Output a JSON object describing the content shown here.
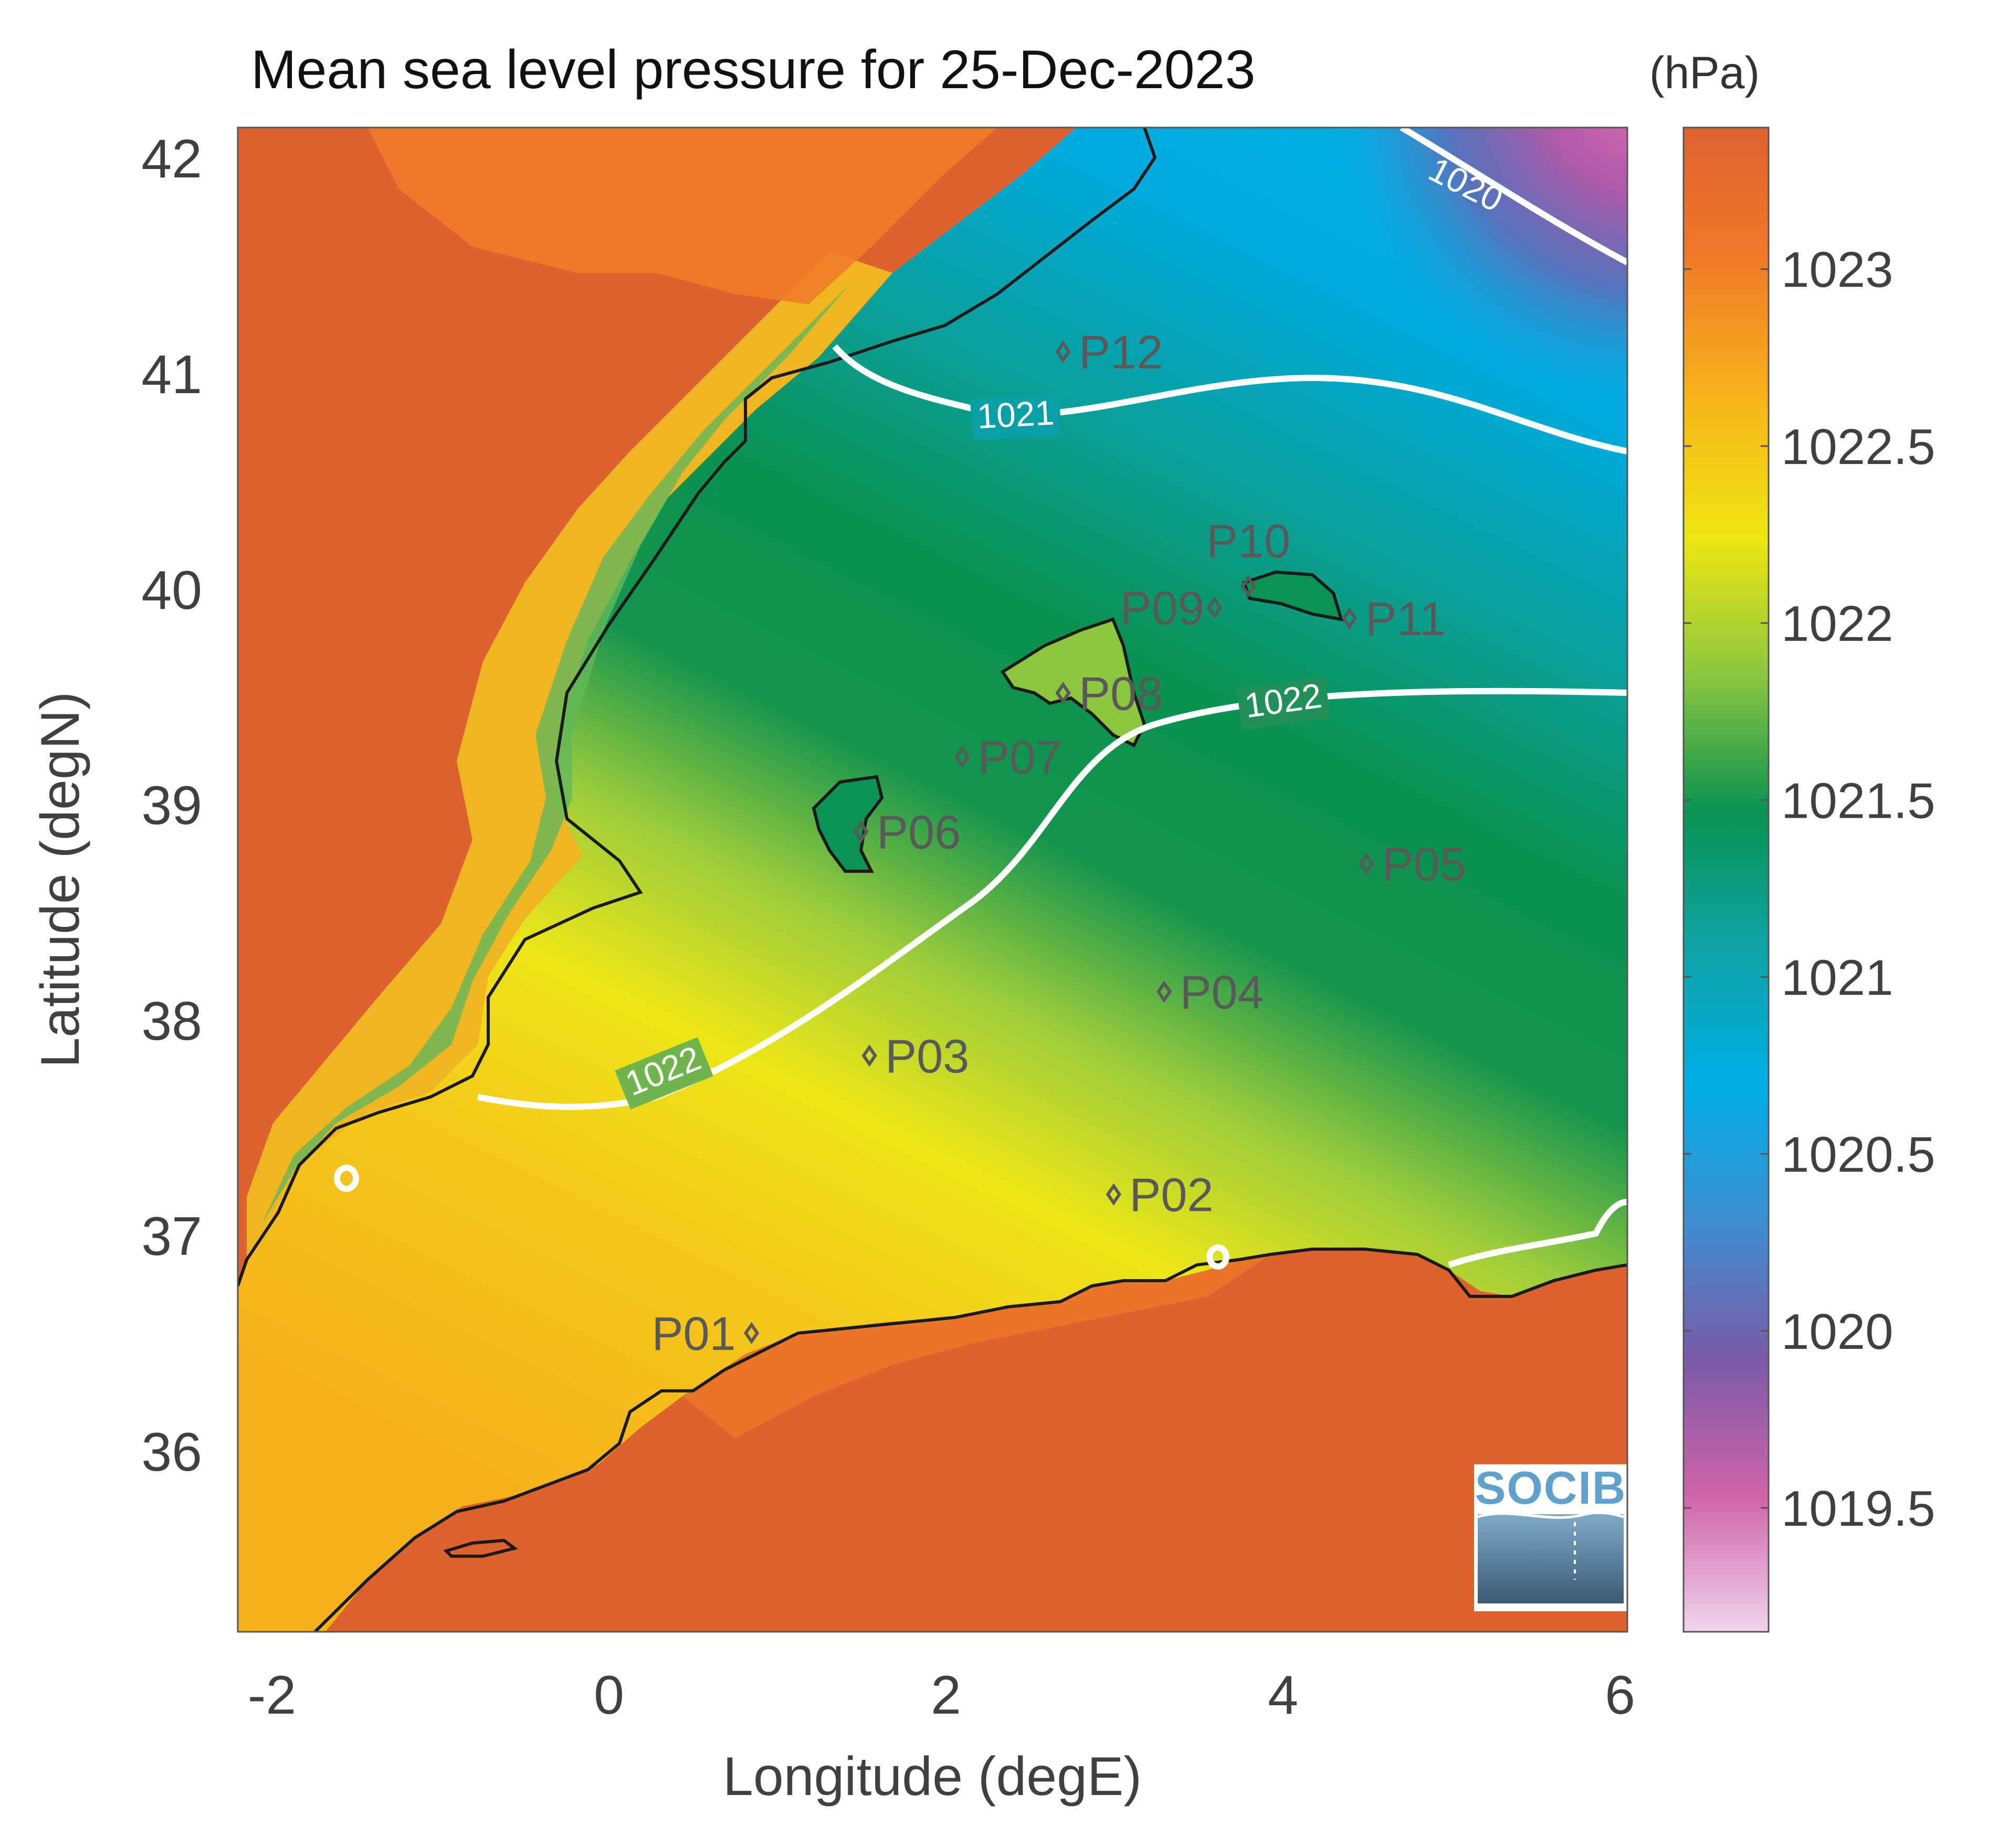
{
  "figure": {
    "title": "Mean sea level pressure for 25-Dec-2023",
    "x_axis_label": "Longitude (degE)",
    "y_axis_label": "Latitude (degN)",
    "x_ticks": [
      "-2",
      "0",
      "2",
      "4",
      "6"
    ],
    "y_ticks": [
      "36",
      "37",
      "38",
      "39",
      "40",
      "41",
      "42"
    ],
    "logo_text": "SOCIB"
  },
  "colorbar": {
    "unit": "(hPa)",
    "ticks": [
      "1019.5",
      "1020",
      "1020.5",
      "1021",
      "1021.5",
      "1022",
      "1022.5",
      "1023"
    ],
    "range": [
      1019.15,
      1023.4
    ],
    "colors": [
      "#f0d4ec",
      "#d063a8",
      "#7a5aa8",
      "#3e8ed0",
      "#00aee6",
      "#0fa3a6",
      "#0a9352",
      "#8cc63f",
      "#eee613",
      "#f7b51a",
      "#f07c28",
      "#dd6230"
    ]
  },
  "chart_data": {
    "type": "heatmap",
    "title": "Mean sea level pressure for 25-Dec-2023",
    "xlabel": "Longitude (degE)",
    "ylabel": "Latitude (degN)",
    "xlim": [
      -2.2,
      6.05
    ],
    "ylim": [
      35.1,
      42.15
    ],
    "colorbar_label": "(hPa)",
    "colorbar_range": [
      1019.15,
      1023.4
    ],
    "contour_levels": [
      1020,
      1021,
      1022
    ],
    "stations": [
      {
        "name": "P01",
        "lon": 0.85,
        "lat": 36.5
      },
      {
        "name": "P02",
        "lon": 3.0,
        "lat": 37.15
      },
      {
        "name": "P03",
        "lon": 1.55,
        "lat": 37.8
      },
      {
        "name": "P04",
        "lon": 3.3,
        "lat": 38.1
      },
      {
        "name": "P05",
        "lon": 4.5,
        "lat": 38.7
      },
      {
        "name": "P06",
        "lon": 1.5,
        "lat": 38.85
      },
      {
        "name": "P07",
        "lon": 2.1,
        "lat": 39.2
      },
      {
        "name": "P08",
        "lon": 2.7,
        "lat": 39.5
      },
      {
        "name": "P09",
        "lon": 3.6,
        "lat": 39.9
      },
      {
        "name": "P10",
        "lon": 3.8,
        "lat": 40.0
      },
      {
        "name": "P11",
        "lon": 4.4,
        "lat": 39.85
      },
      {
        "name": "P12",
        "lon": 2.7,
        "lat": 41.1
      }
    ]
  }
}
